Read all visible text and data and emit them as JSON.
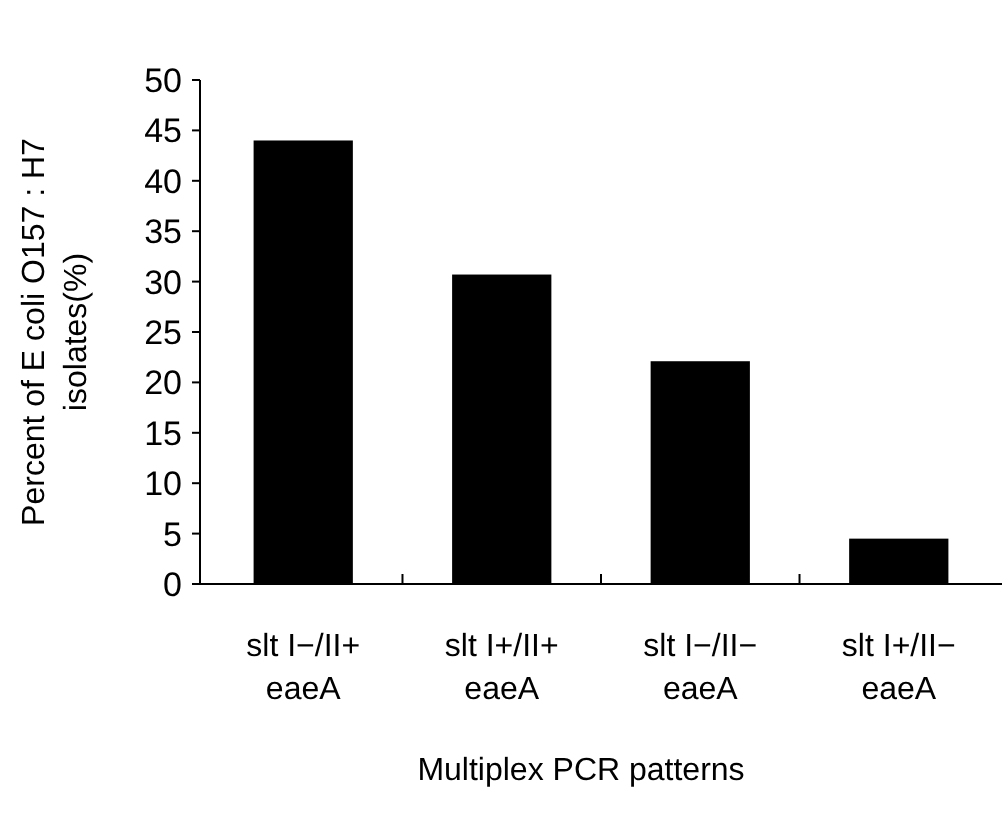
{
  "chart_data": {
    "type": "bar",
    "categories": [
      "slt I−/II+ eaeA",
      "slt I+/II+ eaeA",
      "slt I−/II− eaeA",
      "slt I+/II− eaeA"
    ],
    "values": [
      44,
      30.7,
      22.1,
      4.5
    ],
    "color": "#000000",
    "ylim": [
      0,
      50
    ],
    "yticks": [
      0,
      5,
      10,
      15,
      20,
      25,
      30,
      35,
      40,
      45,
      50
    ],
    "xlabel": "Multiplex PCR patterns",
    "ylabel": "Percent of E coli O157 : H7 isolates(%)"
  }
}
